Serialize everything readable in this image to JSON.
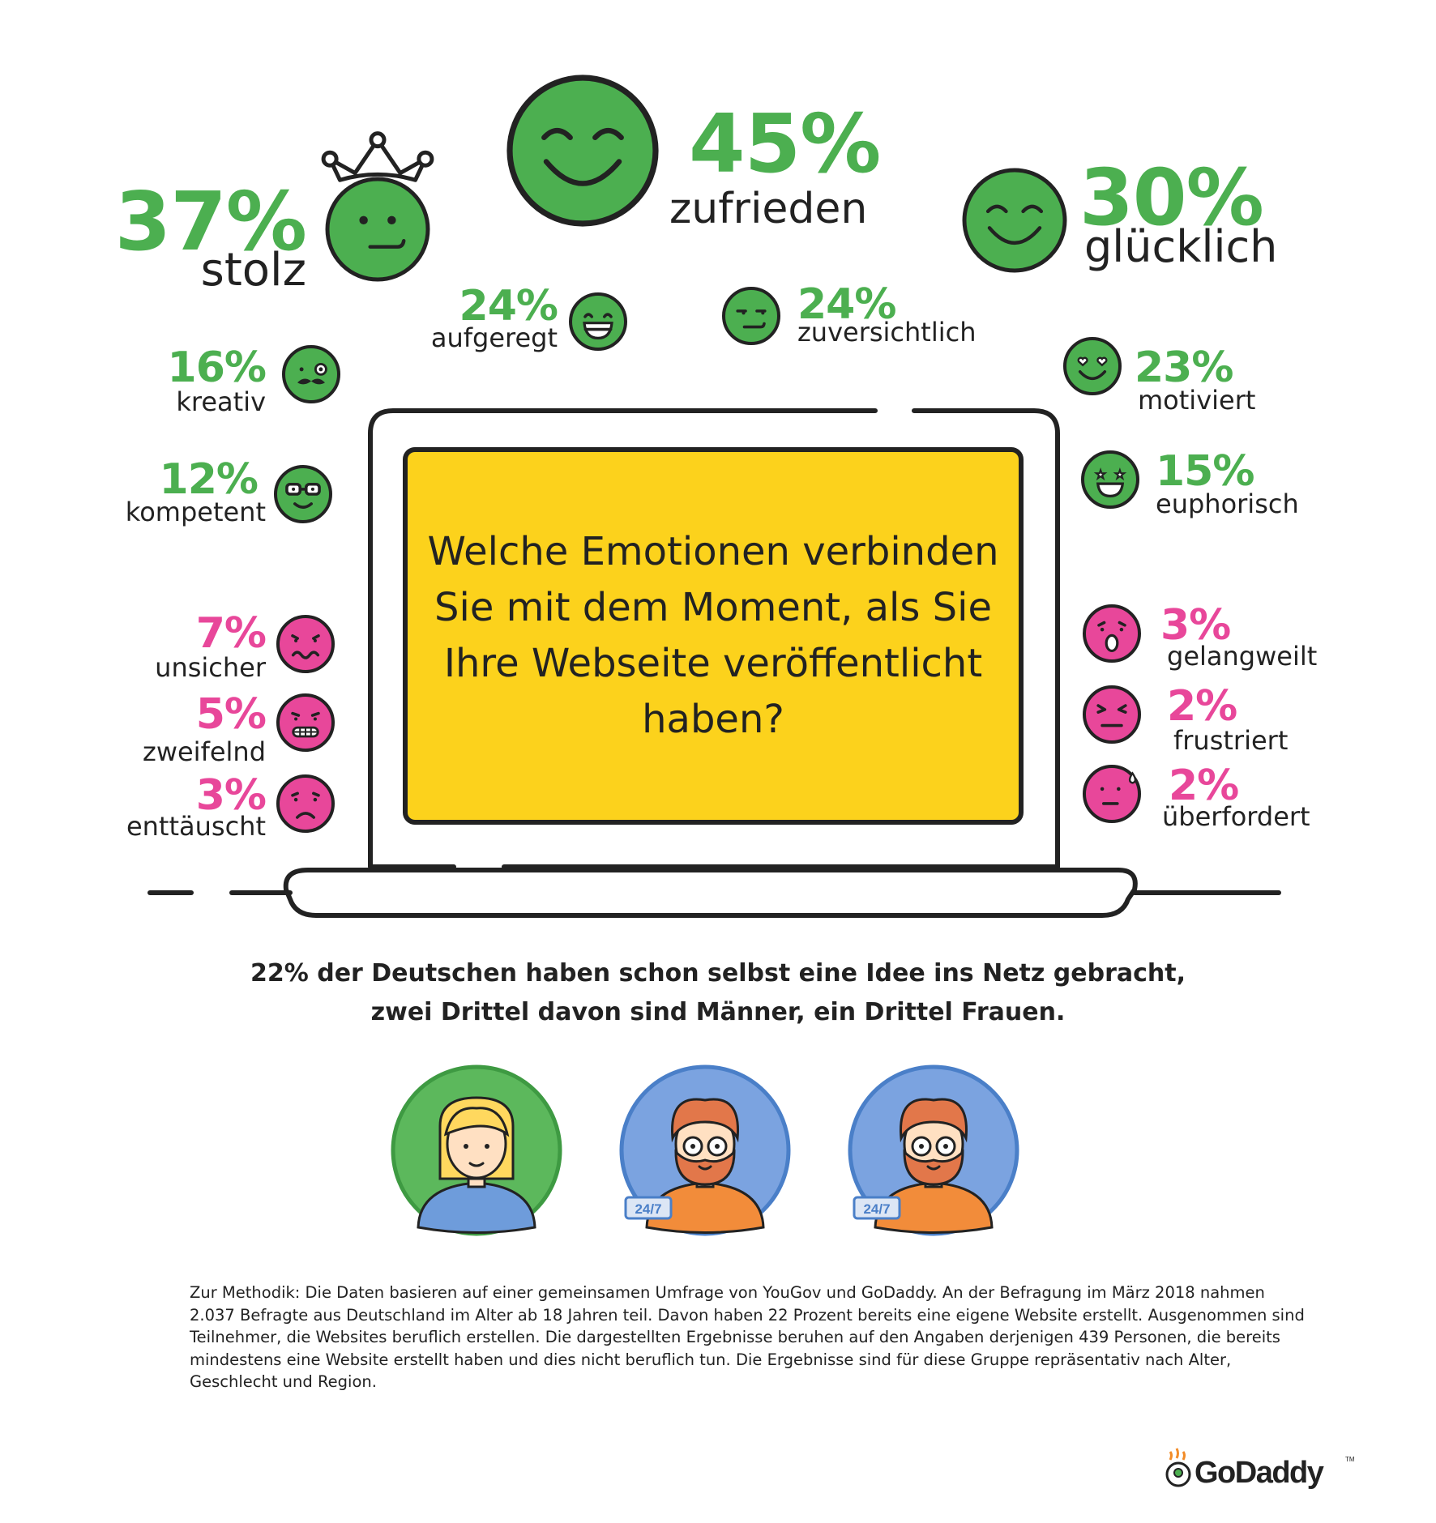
{
  "colors": {
    "positive": "#4CAF50",
    "negative": "#E8479A",
    "screen": "#FCD21C",
    "ink": "#222222",
    "avatar_green": "#5CB85C",
    "avatar_blue": "#7BA3E0"
  },
  "question": "Welche Emotionen verbinden Sie mit dem Moment, als Sie Ihre Webseite veröffentlicht haben?",
  "chart_data": {
    "type": "table",
    "title": "Welche Emotionen verbinden Sie mit dem Moment, als Sie Ihre Webseite veröffentlicht haben?",
    "unit": "%",
    "rows": [
      {
        "label": "zufrieden",
        "value": 45,
        "display": "45%",
        "sentiment": "positive",
        "icon": "smiling-face-icon"
      },
      {
        "label": "stolz",
        "value": 37,
        "display": "37%",
        "sentiment": "positive",
        "icon": "crowned-face-icon"
      },
      {
        "label": "glücklich",
        "value": 30,
        "display": "30%",
        "sentiment": "positive",
        "icon": "happy-face-icon"
      },
      {
        "label": "aufgeregt",
        "value": 24,
        "display": "24%",
        "sentiment": "positive",
        "icon": "grinning-face-icon"
      },
      {
        "label": "zuversichtlich",
        "value": 24,
        "display": "24%",
        "sentiment": "positive",
        "icon": "smirking-face-icon"
      },
      {
        "label": "motiviert",
        "value": 23,
        "display": "23%",
        "sentiment": "positive",
        "icon": "heart-eyes-face-icon"
      },
      {
        "label": "kreativ",
        "value": 16,
        "display": "16%",
        "sentiment": "positive",
        "icon": "mustache-monocle-face-icon"
      },
      {
        "label": "euphorisch",
        "value": 15,
        "display": "15%",
        "sentiment": "positive",
        "icon": "star-eyes-face-icon"
      },
      {
        "label": "kompetent",
        "value": 12,
        "display": "12%",
        "sentiment": "positive",
        "icon": "glasses-face-icon"
      },
      {
        "label": "unsicher",
        "value": 7,
        "display": "7%",
        "sentiment": "negative",
        "icon": "wavy-mouth-face-icon"
      },
      {
        "label": "zweifelnd",
        "value": 5,
        "display": "5%",
        "sentiment": "negative",
        "icon": "grimacing-face-icon"
      },
      {
        "label": "enttäuscht",
        "value": 3,
        "display": "3%",
        "sentiment": "negative",
        "icon": "sad-face-icon"
      },
      {
        "label": "gelangweilt",
        "value": 3,
        "display": "3%",
        "sentiment": "negative",
        "icon": "yawning-face-icon"
      },
      {
        "label": "frustriert",
        "value": 2,
        "display": "2%",
        "sentiment": "negative",
        "icon": "angry-face-icon"
      },
      {
        "label": "überfordert",
        "value": 2,
        "display": "2%",
        "sentiment": "negative",
        "icon": "sweat-face-icon"
      }
    ]
  },
  "stat_text": {
    "line1": "22% der Deutschen haben schon selbst eine Idee ins Netz gebracht,",
    "line2": "zwei Drittel davon sind Männer, ein Drittel Frauen."
  },
  "avatars": [
    {
      "icon": "woman-avatar-icon",
      "badge": ""
    },
    {
      "icon": "man-avatar-icon",
      "badge": "24/7"
    },
    {
      "icon": "man-avatar-icon",
      "badge": "24/7"
    }
  ],
  "methodology": "Zur Methodik: Die Daten basieren auf einer gemeinsamen Umfrage von YouGov und GoDaddy. An der Befragung im März 2018 nahmen 2.037 Befragte aus Deutschland im Alter ab 18 Jahren teil. Davon haben 22 Prozent bereits eine eigene Website erstellt. Ausgenommen sind Teilnehmer, die Websites beruflich erstellen. Die dargestellten Ergebnisse beruhen auf den Angaben derjenigen 439 Personen, die bereits mindestens eine Website erstellt haben und dies nicht beruflich tun. Die Ergebnisse sind für diese Gruppe repräsentativ nach Alter, Geschlecht und Region.",
  "logo": {
    "text": "GoDaddy",
    "tm": "TM"
  }
}
